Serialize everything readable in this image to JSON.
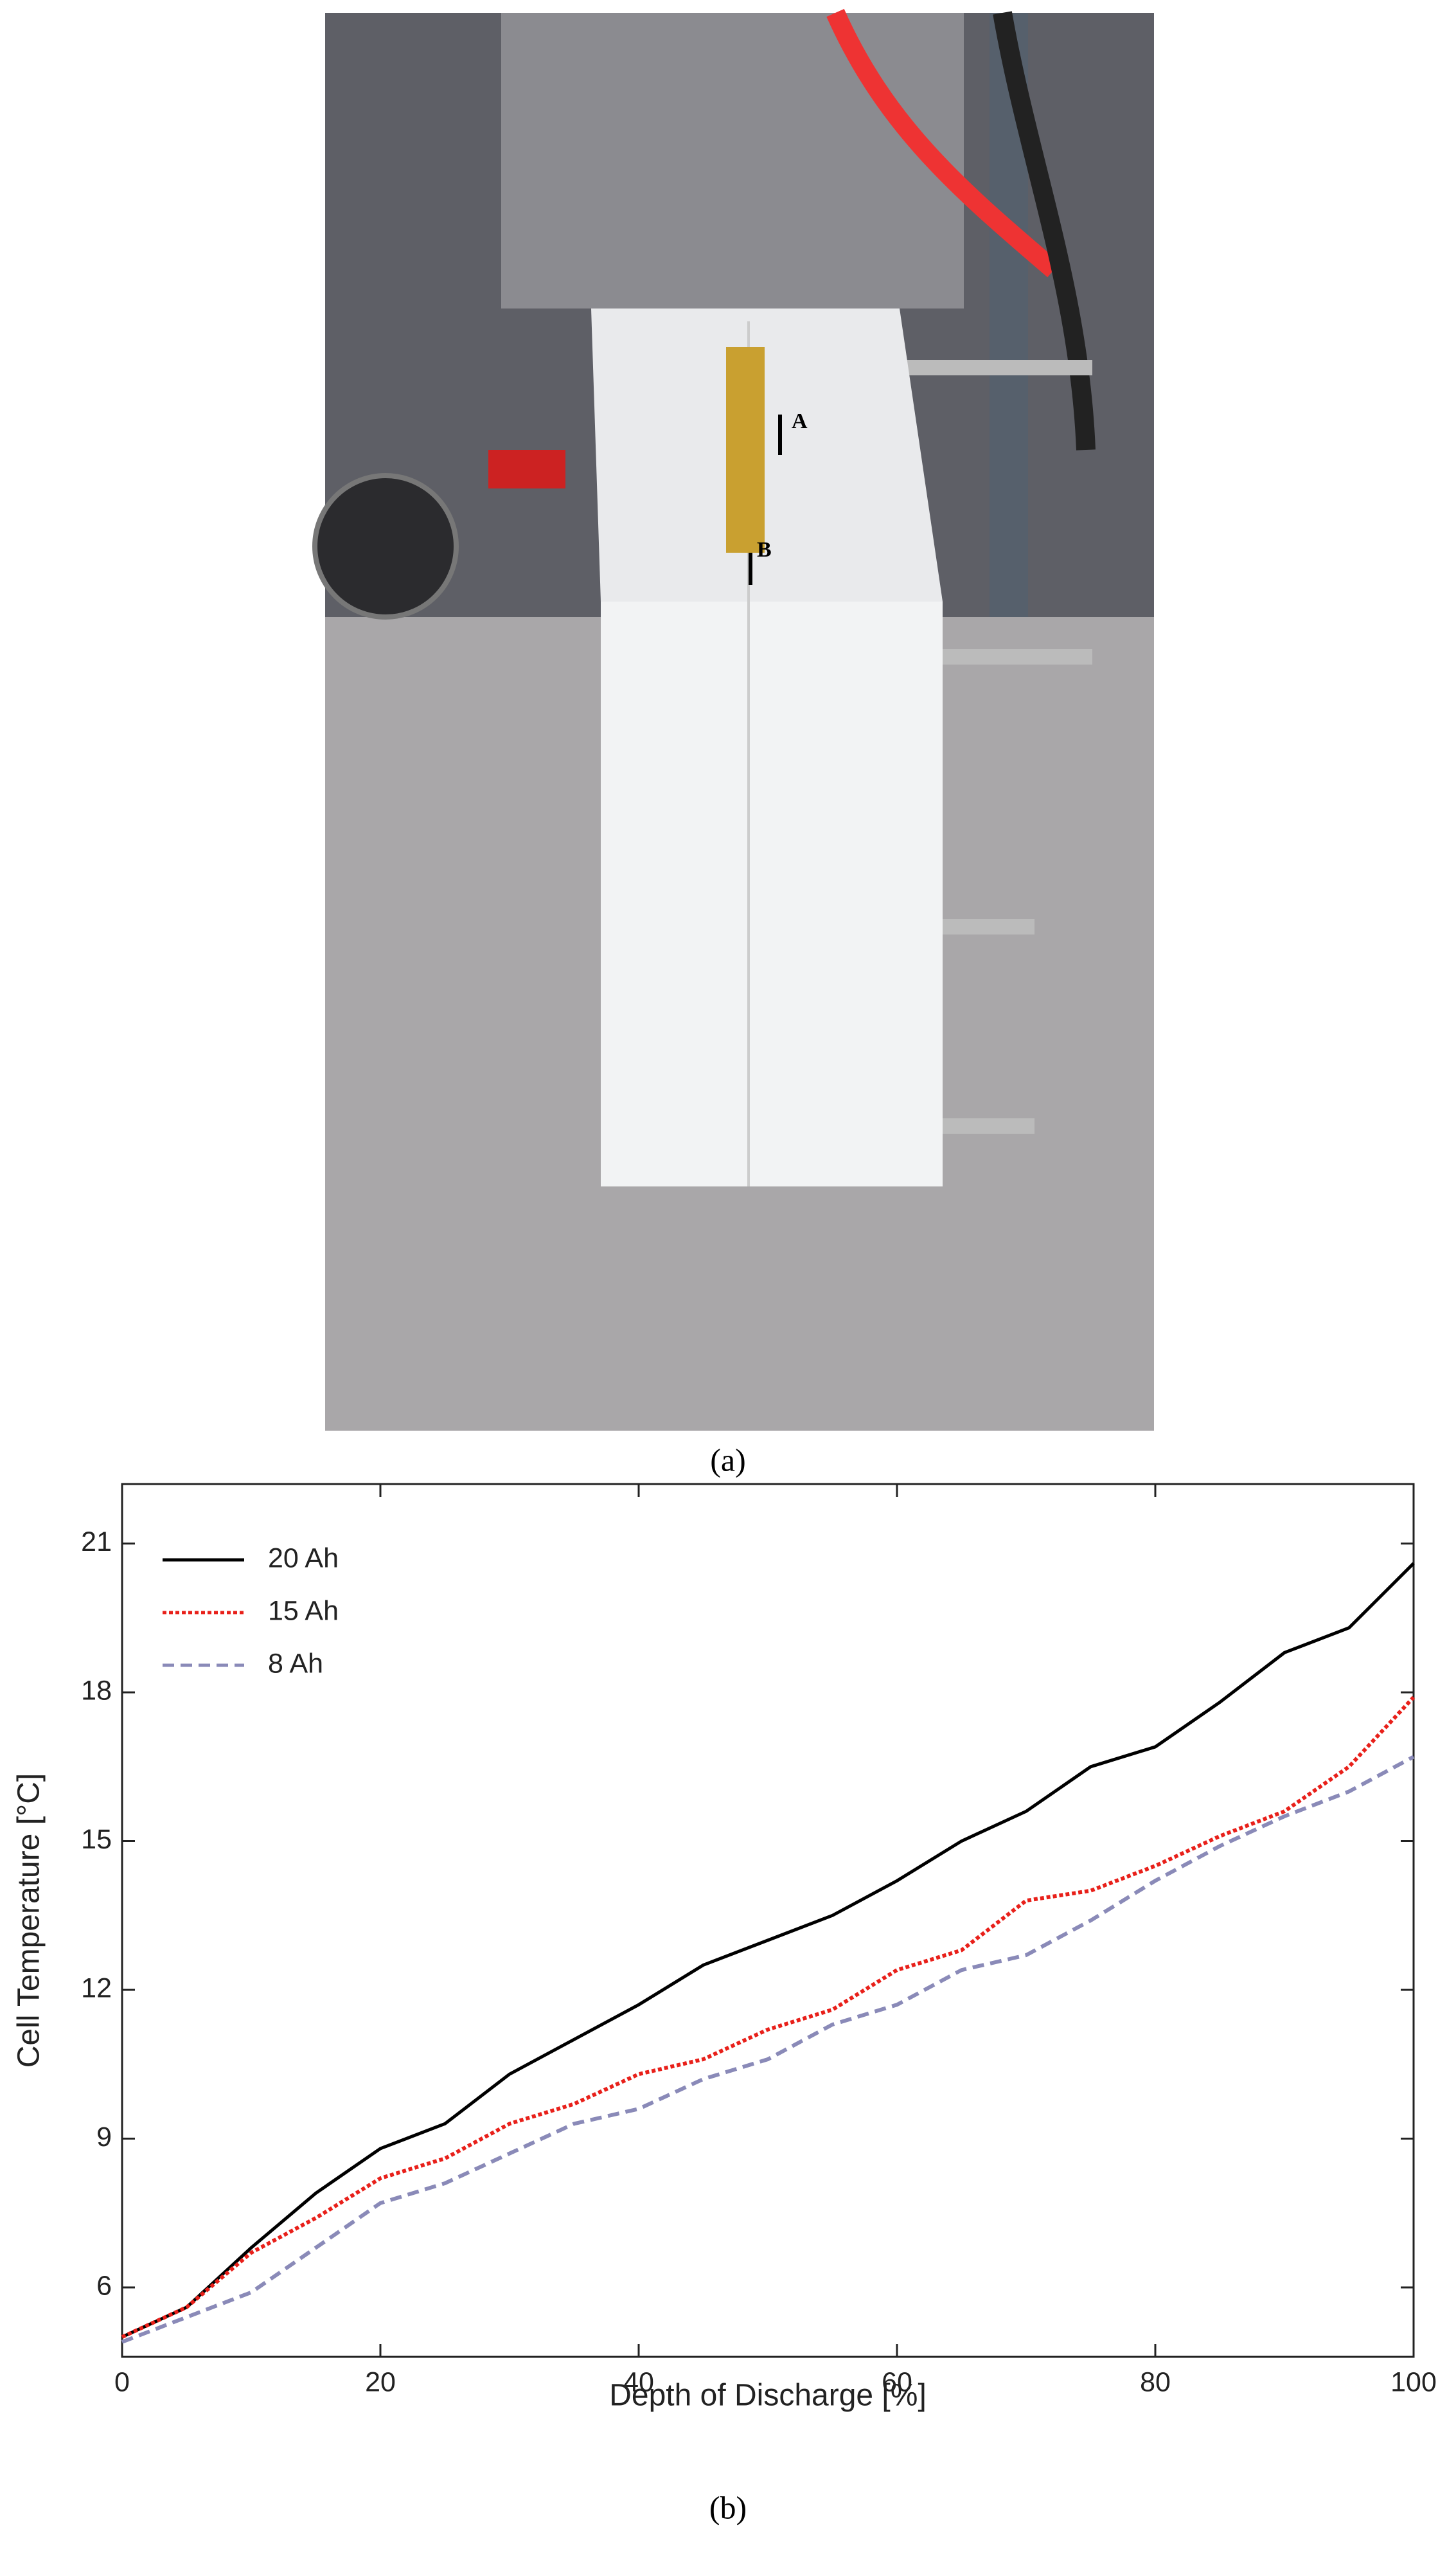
{
  "photo": {
    "markers": [
      "A",
      "B"
    ],
    "caption": "(a)"
  },
  "chart_caption": "(b)",
  "chart_data": {
    "type": "line",
    "xlabel": "Depth of Discharge [%]",
    "ylabel": "Cell Temperature [°C]",
    "x": [
      0,
      5,
      10,
      15,
      20,
      25,
      30,
      35,
      40,
      45,
      50,
      55,
      60,
      65,
      70,
      75,
      80,
      85,
      90,
      95,
      100
    ],
    "series": [
      {
        "name": "20 Ah",
        "color": "#000000",
        "dash": "solid",
        "values": [
          5.0,
          5.6,
          6.8,
          7.9,
          8.8,
          9.3,
          10.3,
          11.0,
          11.7,
          12.5,
          13.0,
          13.5,
          14.2,
          15.0,
          15.6,
          16.5,
          16.9,
          17.8,
          18.8,
          19.3,
          20.6
        ]
      },
      {
        "name": "15 Ah",
        "color": "#e8201a",
        "dash": "dotted",
        "values": [
          5.0,
          5.6,
          6.7,
          7.4,
          8.2,
          8.6,
          9.3,
          9.7,
          10.3,
          10.6,
          11.2,
          11.6,
          12.4,
          12.8,
          13.8,
          14.0,
          14.5,
          15.1,
          15.6,
          16.5,
          17.9
        ]
      },
      {
        "name": "8 Ah",
        "color": "#8a8ab8",
        "dash": "dashed",
        "values": [
          4.9,
          5.4,
          5.9,
          6.8,
          7.7,
          8.1,
          8.7,
          9.3,
          9.6,
          10.2,
          10.6,
          11.3,
          11.7,
          12.4,
          12.7,
          13.4,
          14.2,
          14.9,
          15.5,
          16.0,
          16.7
        ]
      }
    ],
    "xlim": [
      0,
      100
    ],
    "xticks": [
      0,
      20,
      40,
      60,
      80,
      100
    ],
    "ylim": [
      4.6,
      22.2
    ],
    "yticks": [
      6,
      9,
      12,
      15,
      18,
      21
    ],
    "legend": "upper left",
    "grid": false
  }
}
